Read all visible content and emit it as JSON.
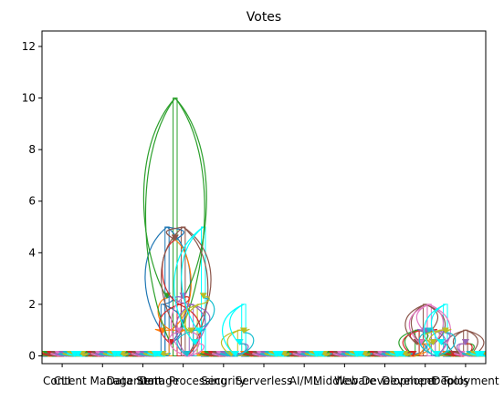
{
  "chart_data": {
    "type": "bar",
    "title": "Votes",
    "xlabel": "",
    "ylabel": "",
    "ylim": [
      -0.3,
      12.6
    ],
    "yticks": [
      0,
      2,
      4,
      6,
      8,
      10,
      12
    ],
    "categories": [
      "CLI",
      "Content Management",
      "Data Storage",
      "Data Processing",
      "Security",
      "Serverless",
      "AI/ML",
      "Middleware",
      "Web Development",
      "Developer Tools",
      "Deployment"
    ],
    "bar_width": 0.1,
    "grid": false,
    "legend": "none",
    "colors": [
      "#1f77b4",
      "#ff7f0e",
      "#2ca02c",
      "#d62728",
      "#9467bd",
      "#8c564b",
      "#e377c2",
      "#7f7f7f",
      "#bcbd22",
      "#17becf",
      "#00ffff"
    ],
    "series": [
      {
        "values": [
          0,
          0,
          0,
          2,
          0,
          0,
          0,
          0,
          0,
          0,
          0
        ],
        "color": "#1f77b4"
      },
      {
        "values": [
          0,
          0,
          0,
          5,
          0,
          0,
          0,
          0,
          0,
          0,
          0
        ],
        "color": "#1f77b4"
      },
      {
        "values": [
          0,
          0,
          0,
          1,
          0,
          0,
          0,
          0,
          0,
          0,
          0
        ],
        "color": "#ff7f0e"
      },
      {
        "values": [
          0,
          0,
          0,
          10,
          0,
          0,
          0,
          0,
          0,
          1,
          0
        ],
        "color": "#2ca02c"
      },
      {
        "values": [
          0,
          0,
          0,
          2,
          0,
          0,
          0,
          0,
          0,
          1,
          0
        ],
        "color": "#d62728"
      },
      {
        "values": [
          0,
          0,
          0,
          5,
          0,
          0,
          0,
          0,
          0,
          2,
          1
        ],
        "color": "#8c564b"
      },
      {
        "values": [
          0,
          0,
          0,
          0,
          0,
          0,
          0,
          0,
          0,
          2,
          0
        ],
        "color": "#e377c2"
      },
      {
        "values": [
          0,
          0,
          0,
          2,
          0,
          0,
          0,
          0,
          0,
          1,
          0
        ],
        "color": "#9467bd"
      },
      {
        "values": [
          0,
          0,
          0,
          1,
          0,
          0,
          0,
          0,
          0,
          0,
          0
        ],
        "color": "#17becf"
      },
      {
        "values": [
          0,
          0,
          0,
          2,
          1,
          0,
          0,
          0,
          0,
          1,
          0
        ],
        "color": "#bcbd22"
      },
      {
        "values": [
          0,
          0,
          0,
          5,
          2,
          0,
          0,
          0,
          0,
          2,
          0
        ],
        "color": "#00ffff"
      }
    ]
  }
}
